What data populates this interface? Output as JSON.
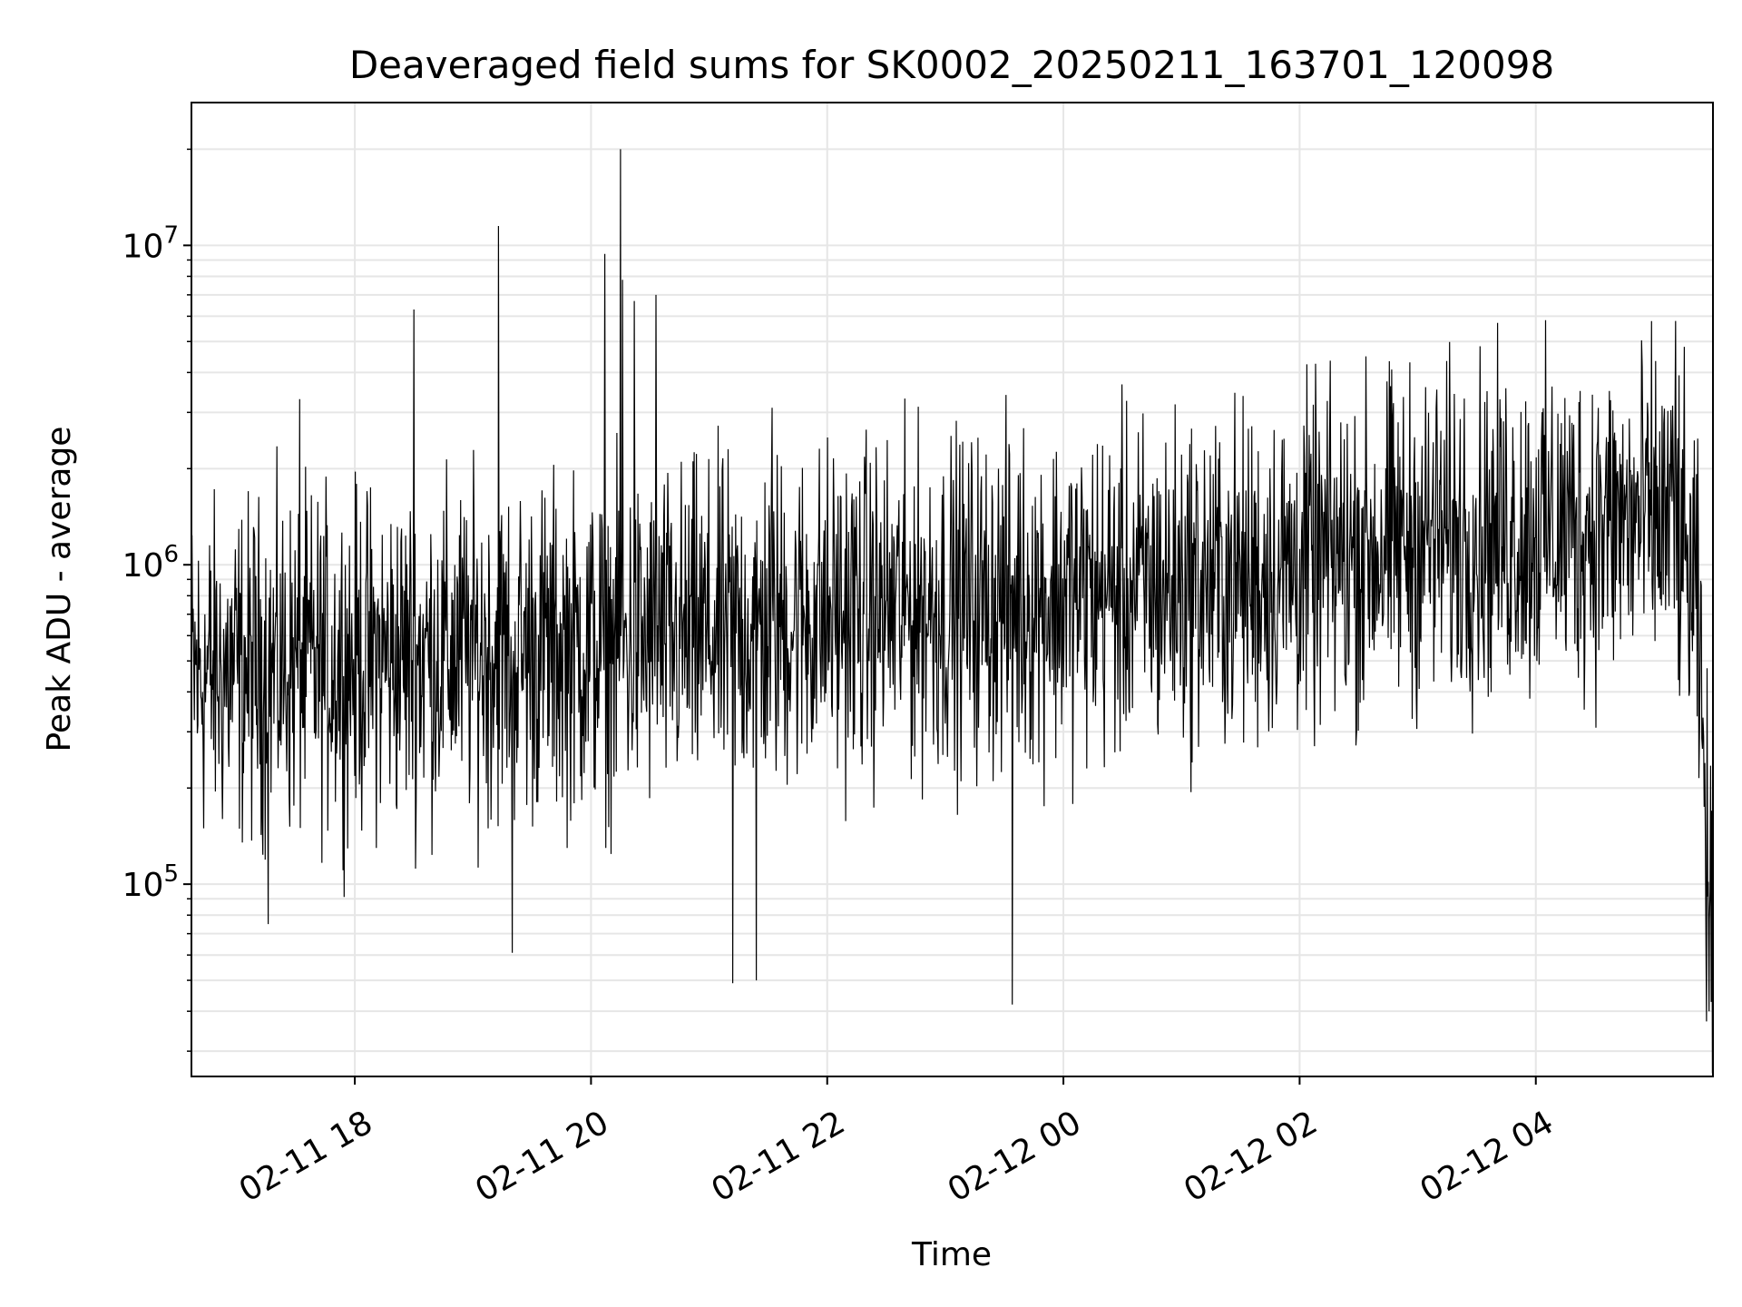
{
  "chart_data": {
    "type": "line",
    "title": "Deaveraged field sums for SK0002_20250211_163701_120098",
    "xlabel": "Time",
    "ylabel": "Peak ADU - average",
    "yscale": "log",
    "xlim": [
      "2025-02-11 16:37",
      "2025-02-12 05:30"
    ],
    "ylim": [
      25000,
      28000000
    ],
    "grid": true,
    "line_color": "#000000",
    "grid_color": "#e6e6e6",
    "x_ticks": [
      {
        "time": "2025-02-11 18:00",
        "label": "02-11 18"
      },
      {
        "time": "2025-02-11 20:00",
        "label": "02-11 20"
      },
      {
        "time": "2025-02-11 22:00",
        "label": "02-11 22"
      },
      {
        "time": "2025-02-12 00:00",
        "label": "02-12 00"
      },
      {
        "time": "2025-02-12 02:00",
        "label": "02-12 02"
      },
      {
        "time": "2025-02-12 04:00",
        "label": "02-12 04"
      }
    ],
    "y_ticks": [
      {
        "value": 100000,
        "base": "10",
        "exp": "5"
      },
      {
        "value": 1000000,
        "base": "10",
        "exp": "6"
      },
      {
        "value": 10000000,
        "base": "10",
        "exp": "7"
      }
    ],
    "series": [
      {
        "noise_trend": [
          {
            "time": "2025-02-11 16:40",
            "value": 450000
          },
          {
            "time": "2025-02-11 18:30",
            "value": 520000
          },
          {
            "time": "2025-02-11 20:30",
            "value": 560000
          },
          {
            "time": "2025-02-11 22:00",
            "value": 700000
          },
          {
            "time": "2025-02-12 00:00",
            "value": 800000
          },
          {
            "time": "2025-02-12 01:30",
            "value": 900000
          },
          {
            "time": "2025-02-12 03:00",
            "value": 1200000
          },
          {
            "time": "2025-02-12 05:10",
            "value": 1400000
          },
          {
            "time": "2025-02-12 05:22",
            "value": 700000
          },
          {
            "time": "2025-02-12 05:30",
            "value": 45000
          }
        ],
        "spikes": [
          {
            "time": "2025-02-11 17:32",
            "value": 3300000
          },
          {
            "time": "2025-02-11 18:30",
            "value": 6300000
          },
          {
            "time": "2025-02-11 19:13",
            "value": 11500000
          },
          {
            "time": "2025-02-11 20:07",
            "value": 9400000
          },
          {
            "time": "2025-02-11 20:15",
            "value": 20000000
          },
          {
            "time": "2025-02-11 20:16",
            "value": 7800000
          },
          {
            "time": "2025-02-11 20:22",
            "value": 6700000
          },
          {
            "time": "2025-02-11 20:33",
            "value": 7000000
          },
          {
            "time": "2025-02-11 21:32",
            "value": 3100000
          },
          {
            "time": "2025-02-12 05:11",
            "value": 5800000
          }
        ],
        "dips": [
          {
            "time": "2025-02-11 17:16",
            "value": 75000
          },
          {
            "time": "2025-02-11 19:20",
            "value": 61000
          },
          {
            "time": "2025-02-11 21:12",
            "value": 49000
          },
          {
            "time": "2025-02-11 21:24",
            "value": 50000
          },
          {
            "time": "2025-02-11 23:34",
            "value": 42000
          },
          {
            "time": "2025-02-12 05:28",
            "value": 40000
          }
        ]
      }
    ]
  }
}
